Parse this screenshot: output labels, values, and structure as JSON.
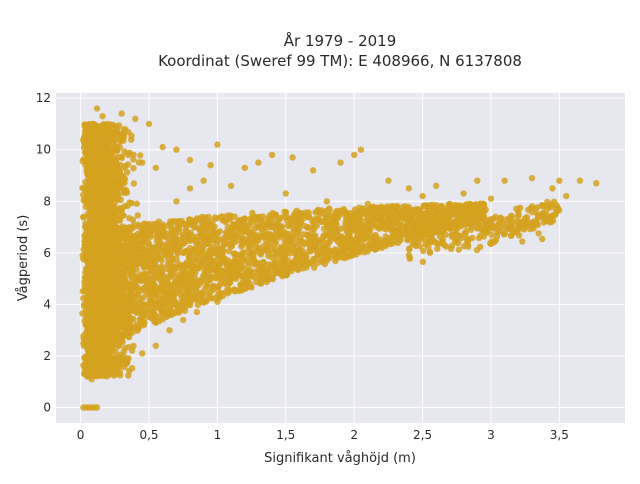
{
  "chart_data": {
    "type": "scatter",
    "title": "År 1979 - 2019",
    "subtitle": "Koordinat (Sweref 99 TM): E 408966, N 6137808",
    "xlabel": "Signifikant våghöjd (m)",
    "ylabel": "Vågperiod (s)",
    "xlim": [
      -0.18,
      3.98
    ],
    "ylim": [
      -0.6,
      12.2
    ],
    "xticks": [
      0,
      0.5,
      1,
      1.5,
      2,
      2.5,
      3,
      3.5
    ],
    "xtick_labels": [
      "0",
      "0,5",
      "1",
      "1,5",
      "2",
      "2,5",
      "3",
      "3,5"
    ],
    "yticks": [
      0,
      2,
      4,
      6,
      8,
      10,
      12
    ],
    "ytick_labels": [
      "0",
      "2",
      "4",
      "6",
      "8",
      "10",
      "12"
    ],
    "grid": true,
    "legend": "none",
    "series": [
      {
        "color": "#D4A220",
        "points": [
          [
            0.02,
            0
          ],
          [
            0.04,
            0
          ],
          [
            0.06,
            0
          ],
          [
            0.08,
            0
          ],
          [
            0.1,
            0
          ],
          [
            0.12,
            0
          ],
          [
            0.12,
            11.6
          ],
          [
            0.16,
            11.3
          ],
          [
            0.3,
            11.4
          ],
          [
            0.4,
            11.2
          ],
          [
            0.5,
            11.0
          ],
          [
            0.2,
            10.8
          ],
          [
            0.1,
            10.9
          ],
          [
            0.6,
            10.1
          ],
          [
            0.7,
            10.0
          ],
          [
            1.0,
            10.2
          ],
          [
            1.4,
            9.8
          ],
          [
            1.55,
            9.7
          ],
          [
            1.9,
            9.5
          ],
          [
            2.05,
            10.0
          ],
          [
            2.0,
            9.8
          ],
          [
            0.45,
            9.5
          ],
          [
            0.55,
            9.3
          ],
          [
            0.8,
            9.6
          ],
          [
            0.95,
            9.4
          ],
          [
            1.2,
            9.3
          ],
          [
            1.3,
            9.5
          ],
          [
            1.7,
            9.2
          ],
          [
            2.25,
            8.8
          ],
          [
            2.6,
            8.6
          ],
          [
            2.9,
            8.8
          ],
          [
            3.1,
            8.8
          ],
          [
            3.3,
            8.9
          ],
          [
            3.5,
            8.8
          ],
          [
            3.65,
            8.8
          ],
          [
            3.77,
            8.7
          ],
          [
            3.55,
            8.2
          ],
          [
            3.45,
            8.5
          ],
          [
            3.3,
            7.8
          ],
          [
            3.2,
            7.6
          ],
          [
            3.0,
            8.1
          ],
          [
            2.8,
            8.3
          ],
          [
            2.7,
            7.9
          ],
          [
            2.5,
            8.2
          ],
          [
            2.4,
            8.5
          ],
          [
            0.05,
            1.2
          ],
          [
            0.08,
            1.1
          ],
          [
            0.12,
            1.3
          ],
          [
            0.03,
            1.5
          ],
          [
            0.06,
            2.8
          ],
          [
            0.02,
            2.5
          ],
          [
            0.04,
            3.5
          ],
          [
            0.15,
            1.6
          ],
          [
            0.25,
            1.7
          ],
          [
            0.35,
            1.9
          ],
          [
            0.45,
            2.1
          ],
          [
            0.55,
            2.4
          ],
          [
            0.65,
            3.0
          ],
          [
            0.75,
            3.4
          ],
          [
            0.85,
            3.7
          ],
          [
            1.0,
            4.1
          ],
          [
            1.2,
            4.6
          ],
          [
            1.4,
            5.0
          ],
          [
            1.6,
            5.4
          ],
          [
            1.8,
            5.7
          ],
          [
            2.0,
            6.0
          ],
          [
            2.2,
            6.3
          ],
          [
            2.4,
            6.6
          ],
          [
            2.6,
            6.9
          ],
          [
            2.8,
            7.1
          ],
          [
            3.0,
            7.3
          ],
          [
            0.2,
            3.0
          ],
          [
            0.3,
            4.0
          ],
          [
            0.4,
            5.0
          ],
          [
            0.5,
            6.0
          ],
          [
            0.6,
            7.0
          ],
          [
            0.7,
            8.0
          ],
          [
            0.8,
            8.5
          ],
          [
            0.9,
            8.8
          ],
          [
            1.1,
            8.6
          ],
          [
            1.5,
            8.3
          ],
          [
            1.8,
            8.0
          ],
          [
            2.1,
            7.9
          ],
          [
            2.3,
            7.7
          ],
          [
            2.6,
            7.5
          ],
          [
            0.35,
            9.8
          ],
          [
            0.25,
            10.4
          ],
          [
            0.15,
            10.0
          ],
          [
            0.1,
            9.0
          ],
          [
            0.08,
            8.0
          ],
          [
            0.05,
            6.0
          ]
        ]
      }
    ]
  }
}
